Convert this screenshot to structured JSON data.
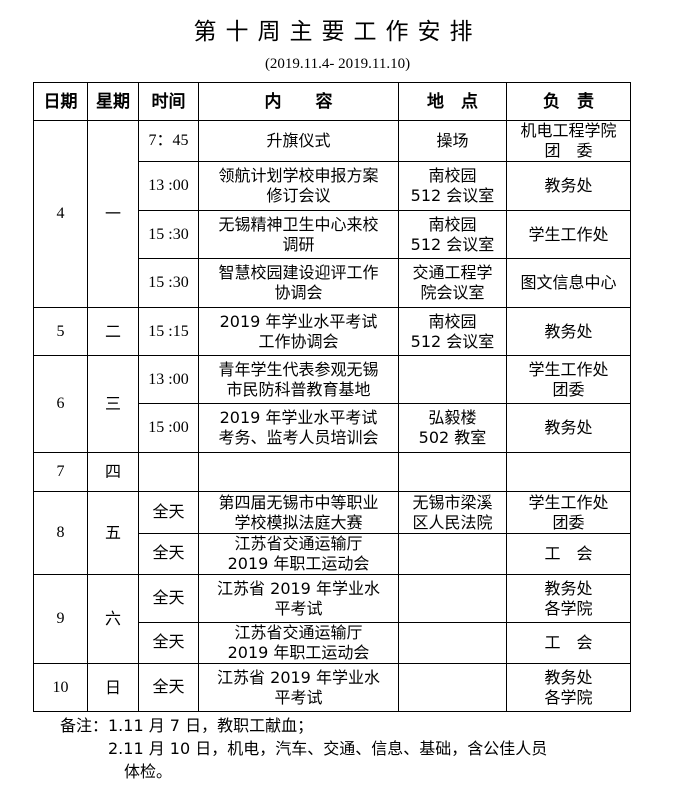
{
  "title": "第十周主要工作安排",
  "subtitle": "(2019.11.4- 2019.11.10)",
  "headers": [
    "日期",
    "星期",
    "时间",
    "内　　容",
    "地　点",
    "负　责"
  ],
  "days": [
    {
      "date": "4",
      "weekday": "一",
      "events": [
        {
          "time": "7：45",
          "content": "升旗仪式",
          "place": "操场",
          "owner": "机电工程学院\n团　委"
        },
        {
          "time": "13 :00",
          "content": "领航计划学校申报方案\n修订会议",
          "place": "南校园\n512 会议室",
          "owner": "教务处"
        },
        {
          "time": "15 :30",
          "content": "无锡精神卫生中心来校\n调研",
          "place": "南校园\n512 会议室",
          "owner": "学生工作处"
        },
        {
          "time": "15 :30",
          "content": "智慧校园建设迎评工作\n协调会",
          "place": "交通工程学\n院会议室",
          "owner": "图文信息中心"
        }
      ]
    },
    {
      "date": "5",
      "weekday": "二",
      "events": [
        {
          "time": "15 :15",
          "content": "2019 年学业水平考试\n工作协调会",
          "place": "南校园\n512 会议室",
          "owner": "教务处"
        }
      ]
    },
    {
      "date": "6",
      "weekday": "三",
      "events": [
        {
          "time": "13 :00",
          "content": "青年学生代表参观无锡\n市民防科普教育基地",
          "place": "",
          "owner": "学生工作处\n团委"
        },
        {
          "time": "15 :00",
          "content": "2019 年学业水平考试\n考务、监考人员培训会",
          "place": "弘毅楼\n502 教室",
          "owner": "教务处"
        }
      ]
    },
    {
      "date": "7",
      "weekday": "四",
      "events": [
        {
          "time": "",
          "content": "",
          "place": "",
          "owner": ""
        }
      ]
    },
    {
      "date": "8",
      "weekday": "五",
      "events": [
        {
          "time": "全天",
          "content": "第四届无锡市中等职业\n学校模拟法庭大赛",
          "place": "无锡市梁溪\n区人民法院",
          "owner": "学生工作处\n团委"
        },
        {
          "time": "全天",
          "content": "江苏省交通运输厅\n2019 年职工运动会",
          "place": "",
          "owner": "工　会"
        }
      ]
    },
    {
      "date": "9",
      "weekday": "六",
      "events": [
        {
          "time": "全天",
          "content": "江苏省 2019 年学业水\n平考试",
          "place": "",
          "owner": "教务处\n各学院"
        },
        {
          "time": "全天",
          "content": "江苏省交通运输厅\n2019 年职工运动会",
          "place": "",
          "owner": "工　会"
        }
      ]
    },
    {
      "date": "10",
      "weekday": "日",
      "events": [
        {
          "time": "全天",
          "content": "江苏省 2019 年学业水\n平考试",
          "place": "",
          "owner": "教务处\n各学院"
        }
      ]
    }
  ],
  "notes": {
    "line1": "备注：1.11 月 7 日，教职工献血；",
    "line2": "　　　2.11 月 10 日，机电，汽车、交通、信息、基础，含公佳人员",
    "line3": "　　　　体检。"
  }
}
